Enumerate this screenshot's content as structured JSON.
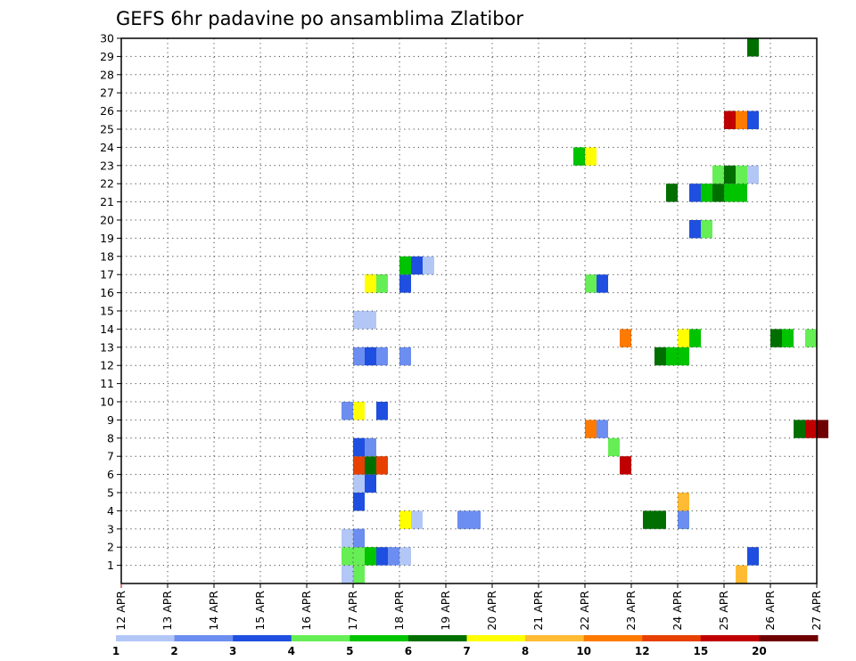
{
  "chart_data": {
    "type": "heatmap",
    "title": "GEFS 6hr padavine po ansamblima Zlatibor",
    "xlabel": "",
    "ylabel": "",
    "x_ticks": [
      "12 APR",
      "13 APR",
      "14 APR",
      "15 APR",
      "16 APR",
      "17 APR",
      "18 APR",
      "19 APR",
      "20 APR",
      "21 APR",
      "22 APR",
      "23 APR",
      "24 APR",
      "25 APR",
      "26 APR",
      "27 APR"
    ],
    "y_ticks": [
      "1",
      "2",
      "3",
      "4",
      "5",
      "6",
      "7",
      "8",
      "9",
      "10",
      "11",
      "12",
      "13",
      "14",
      "15",
      "16",
      "17",
      "18",
      "19",
      "20",
      "21",
      "22",
      "23",
      "24",
      "25",
      "26",
      "27",
      "28",
      "29",
      "30"
    ],
    "x_range": [
      "12 APR 00Z",
      "27 APR 00Z"
    ],
    "y_range": [
      0,
      30
    ],
    "x_step_hours": 6,
    "grid": true,
    "colorbar": {
      "placement": "bottom",
      "labels": [
        "1",
        "2",
        "3",
        "4",
        "5",
        "6",
        "7",
        "8",
        "10",
        "12",
        "15",
        "20"
      ],
      "colors": [
        "#b3c7f7",
        "#6b8ef0",
        "#1f4fe0",
        "#66ee55",
        "#00c400",
        "#006f00",
        "#ffff00",
        "#ffbb33",
        "#ff7a00",
        "#e84000",
        "#c00000",
        "#6e0000"
      ]
    },
    "cell_level_encoding": "level index into colorbar.colors: 0 = 1-2 mm, 1 = 2-3, 2 = 3-4, 3 = 4-5, 4 = 5-6, 5 = 6-7, 6 = 7-8, 7 = 8-10, 8 = 10-12, 9 = 12-15, 10 = 15-20, 11 = >20",
    "cells": [
      [
        "16 APR 18Z",
        1,
        0
      ],
      [
        "17 APR 00Z",
        1,
        6
      ],
      [
        "17 APR 00Z",
        1,
        3
      ],
      [
        "16 APR 18Z",
        2,
        3
      ],
      [
        "17 APR 00Z",
        2,
        3
      ],
      [
        "17 APR 06Z",
        2,
        6
      ],
      [
        "17 APR 06Z",
        2,
        4
      ],
      [
        "17 APR 12Z",
        2,
        2
      ],
      [
        "17 APR 18Z",
        2,
        1
      ],
      [
        "18 APR 00Z",
        2,
        0
      ],
      [
        "16 APR 18Z",
        3,
        0
      ],
      [
        "17 APR 00Z",
        3,
        2
      ],
      [
        "17 APR 00Z",
        3,
        1
      ],
      [
        "18 APR 00Z",
        4,
        6
      ],
      [
        "18 APR 06Z",
        4,
        0
      ],
      [
        "19 APR 06Z",
        4,
        1
      ],
      [
        "19 APR 12Z",
        4,
        1
      ],
      [
        "17 APR 00Z",
        5,
        2
      ],
      [
        "17 APR 00Z",
        6,
        0
      ],
      [
        "17 APR 06Z",
        6,
        2
      ],
      [
        "17 APR 00Z",
        7,
        2
      ],
      [
        "17 APR 00Z",
        7,
        9
      ],
      [
        "17 APR 06Z",
        7,
        7
      ],
      [
        "17 APR 06Z",
        7,
        5
      ],
      [
        "17 APR 12Z",
        7,
        9
      ],
      [
        "17 APR 00Z",
        8,
        0
      ],
      [
        "17 APR 00Z",
        8,
        2
      ],
      [
        "17 APR 06Z",
        8,
        6
      ],
      [
        "17 APR 06Z",
        8,
        1
      ],
      [
        "16 APR 18Z",
        10,
        1
      ],
      [
        "17 APR 00Z",
        10,
        6
      ],
      [
        "17 APR 12Z",
        10,
        2
      ],
      [
        "17 APR 00Z",
        13,
        1
      ],
      [
        "17 APR 06Z",
        13,
        2
      ],
      [
        "17 APR 12Z",
        13,
        1
      ],
      [
        "18 APR 00Z",
        13,
        1
      ],
      [
        "17 APR 00Z",
        15,
        0
      ],
      [
        "17 APR 06Z",
        15,
        0
      ],
      [
        "17 APR 06Z",
        17,
        5
      ],
      [
        "17 APR 06Z",
        17,
        6
      ],
      [
        "17 APR 12Z",
        17,
        4
      ],
      [
        "17 APR 12Z",
        17,
        3
      ],
      [
        "18 APR 00Z",
        17,
        2
      ],
      [
        "18 APR 00Z",
        18,
        4
      ],
      [
        "18 APR 06Z",
        18,
        2
      ],
      [
        "18 APR 12Z",
        18,
        0
      ],
      [
        "23 APR 06Z",
        4,
        5
      ],
      [
        "23 APR 12Z",
        4,
        5
      ],
      [
        "24 APR 00Z",
        4,
        3
      ],
      [
        "24 APR 00Z",
        4,
        1
      ],
      [
        "24 APR 00Z",
        5,
        7
      ],
      [
        "23 APR 12Z",
        13,
        5
      ],
      [
        "23 APR 18Z",
        13,
        4
      ],
      [
        "24 APR 00Z",
        13,
        4
      ],
      [
        "24 APR 00Z",
        14,
        6
      ],
      [
        "24 APR 06Z",
        14,
        4
      ],
      [
        "22 APR 00Z",
        9,
        8
      ],
      [
        "22 APR 06Z",
        9,
        1
      ],
      [
        "22 APR 18Z",
        7,
        10
      ],
      [
        "22 APR 12Z",
        8,
        3
      ],
      [
        "22 APR 18Z",
        14,
        8
      ],
      [
        "21 APR 18Z",
        24,
        4
      ],
      [
        "22 APR 00Z",
        24,
        6
      ],
      [
        "22 APR 00Z",
        17,
        3
      ],
      [
        "22 APR 06Z",
        17,
        2
      ],
      [
        "25 APR 06Z",
        1,
        3
      ],
      [
        "25 APR 06Z",
        1,
        7
      ],
      [
        "25 APR 12Z",
        2,
        2
      ],
      [
        "25 APR 00Z",
        26,
        4
      ],
      [
        "25 APR 00Z",
        26,
        10
      ],
      [
        "25 APR 06Z",
        26,
        8
      ],
      [
        "25 APR 12Z",
        26,
        2
      ],
      [
        "26 APR 00Z",
        14,
        5
      ],
      [
        "26 APR 06Z",
        14,
        4
      ],
      [
        "26 APR 18Z",
        14,
        3
      ],
      [
        "26 APR 12Z",
        9,
        5
      ],
      [
        "26 APR 18Z",
        9,
        10
      ],
      [
        "27 APR 00Z",
        9,
        11
      ],
      [
        "23 APR 18Z",
        22,
        5
      ],
      [
        "24 APR 06Z",
        22,
        2
      ],
      [
        "24 APR 12Z",
        22,
        4
      ],
      [
        "24 APR 18Z",
        22,
        5
      ],
      [
        "25 APR 00Z",
        22,
        4
      ],
      [
        "25 APR 06Z",
        22,
        4
      ],
      [
        "24 APR 18Z",
        23,
        3
      ],
      [
        "25 APR 00Z",
        23,
        5
      ],
      [
        "25 APR 06Z",
        23,
        3
      ],
      [
        "25 APR 12Z",
        23,
        0
      ],
      [
        "24 APR 06Z",
        20,
        2
      ],
      [
        "24 APR 12Z",
        20,
        3
      ],
      [
        "25 APR 12Z",
        30,
        1
      ],
      [
        "25 APR 12Z",
        30,
        5
      ]
    ]
  }
}
